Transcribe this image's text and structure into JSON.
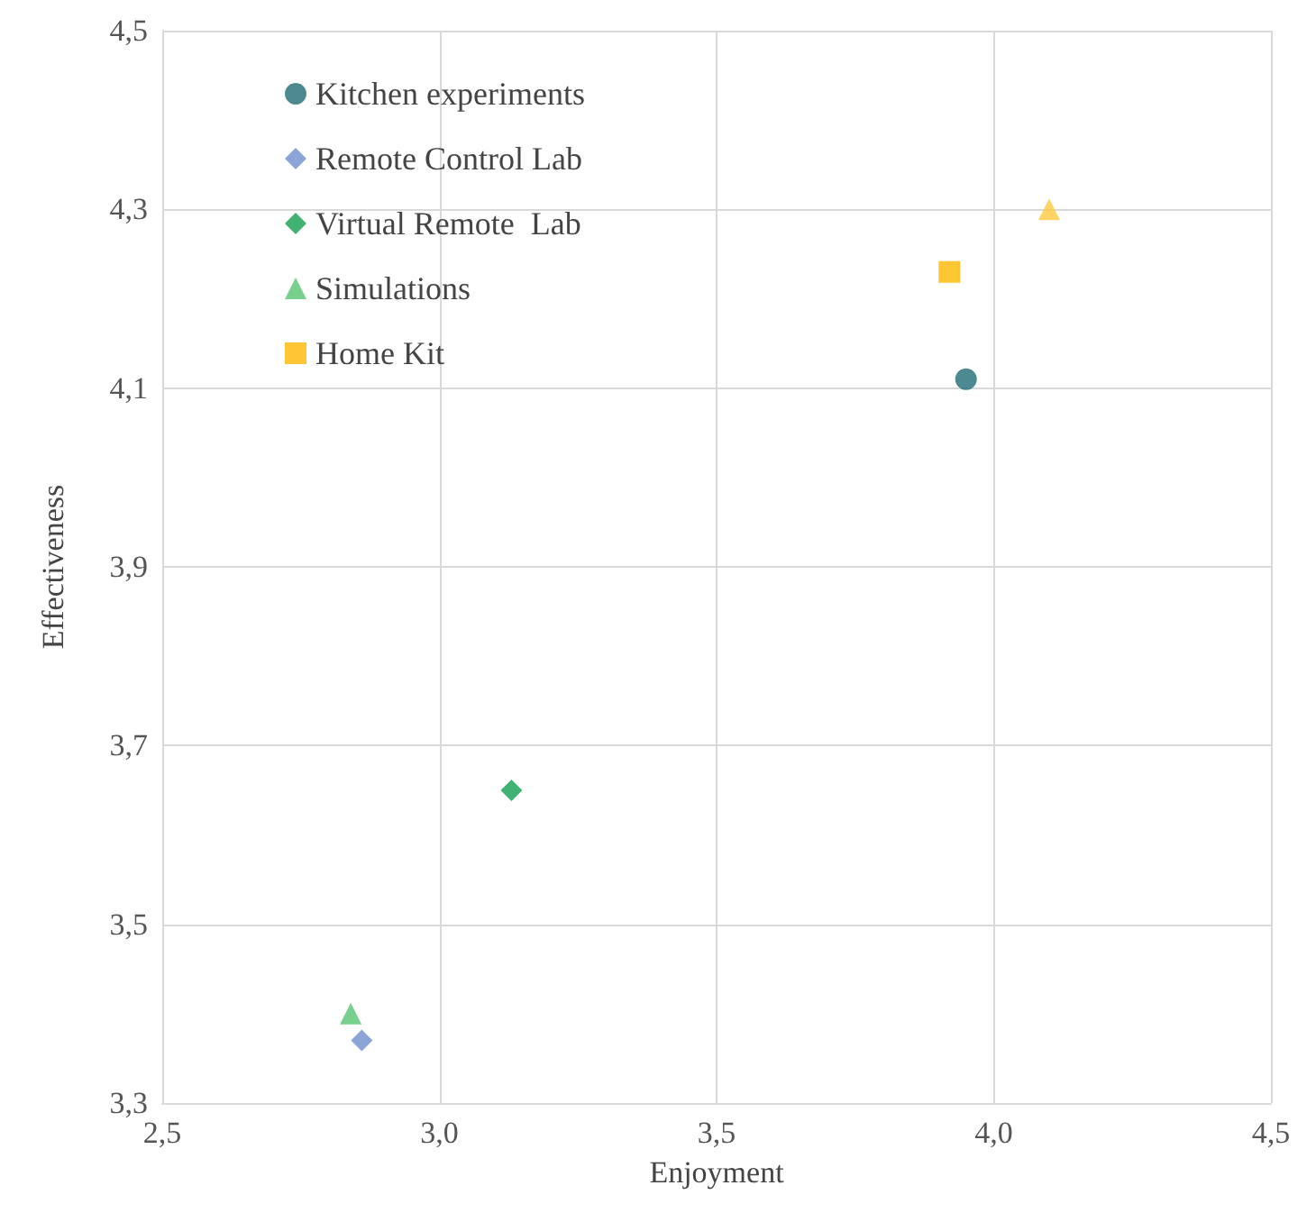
{
  "chart_data": {
    "type": "scatter",
    "xlabel": "Enjoyment",
    "ylabel": "Effectiveness",
    "series": [
      {
        "name": "Kitchen experiments",
        "color": "#1f6b75",
        "marker": "circle",
        "x": [
          3.95
        ],
        "values": [
          4.11
        ]
      },
      {
        "name": "Remote Control Lab",
        "color": "#6f8fd0",
        "marker": "diamond",
        "x": [
          2.86
        ],
        "values": [
          3.37
        ]
      },
      {
        "name": "Virtual Remote  Lab",
        "color": "#10a050",
        "marker": "diamond",
        "x": [
          3.13
        ],
        "values": [
          3.65
        ]
      },
      {
        "name": "Simulations",
        "color": "#55c470",
        "marker": "triangle",
        "x": [
          2.84
        ],
        "values": [
          3.4
        ]
      },
      {
        "color": "#ffc83d",
        "marker": "triangle",
        "x": [
          4.1
        ],
        "values": [
          4.3
        ]
      },
      {
        "name": "Home Kit",
        "color": "#ffb800",
        "marker": "square",
        "x": [
          3.92
        ],
        "values": [
          4.23
        ]
      }
    ],
    "xlim": [
      2.5,
      4.5
    ],
    "xticks": [
      {
        "value": 2.5,
        "label": "2,5"
      },
      {
        "value": 3.0,
        "label": "3,0"
      },
      {
        "value": 3.5,
        "label": "3,5"
      },
      {
        "value": 4.0,
        "label": "4,0"
      },
      {
        "value": 4.5,
        "label": "4,5"
      }
    ],
    "ylim": [
      3.3,
      4.5
    ],
    "yticks": [
      {
        "value": 3.3,
        "label": "3,3"
      },
      {
        "value": 3.5,
        "label": "3,5"
      },
      {
        "value": 3.7,
        "label": "3,7"
      },
      {
        "value": 3.9,
        "label": "3,9"
      },
      {
        "value": 4.1,
        "label": "4,1"
      },
      {
        "value": 4.3,
        "label": "4,3"
      },
      {
        "value": 4.5,
        "label": "4,5"
      }
    ],
    "grid": true,
    "legend": "top left"
  }
}
